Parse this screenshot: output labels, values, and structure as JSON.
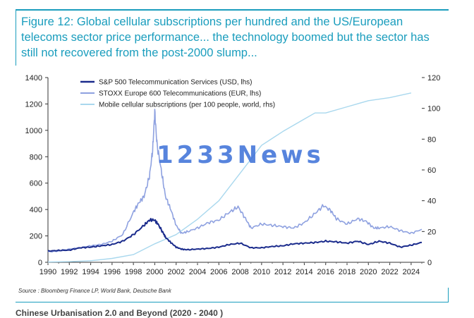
{
  "title": "Figure 12: Global cellular subscriptions per hundred and the US/European telecoms sector price performance... the technology boomed but the sector has still not recovered from the post-2000 slump...",
  "source": "Source : Bloomberg Finance LP, World Bank, Deutsche Bank",
  "footer": "Chinese Urbanisation 2.0 and Beyond (2020 - 2040 )",
  "watermark": "1233News",
  "colors": {
    "frame": "#1a9dbd",
    "sp500": "#1a2b8c",
    "stoxx": "#8ea1e0",
    "mobile": "#a9d8ee"
  },
  "chart_data": {
    "type": "line",
    "title": "",
    "xlabel": "",
    "ylabel_left": "",
    "ylabel_right": "",
    "xlim": [
      1990,
      2025
    ],
    "ylim_left": [
      0,
      1400
    ],
    "ylim_right": [
      0,
      120
    ],
    "x_ticks": [
      "1990",
      "1992",
      "1994",
      "1996",
      "1998",
      "2000",
      "2002",
      "2004",
      "2006",
      "2008",
      "2010",
      "2012",
      "2014",
      "2016",
      "2018",
      "2020",
      "2022",
      "2024"
    ],
    "y_ticks_left": [
      "0",
      "200",
      "400",
      "600",
      "800",
      "1000",
      "1200",
      "1400"
    ],
    "y_ticks_right": [
      "0",
      "20",
      "40",
      "60",
      "80",
      "100",
      "120"
    ],
    "legend_position": "top-left",
    "series": [
      {
        "name": "S&P 500 Telecommunication Services (USD, lhs)",
        "axis": "left",
        "x": [
          1990,
          1991,
          1992,
          1993,
          1994,
          1995,
          1996,
          1997,
          1998,
          1999,
          1999.5,
          2000,
          2000.3,
          2000.8,
          2001,
          2001.5,
          2002,
          2002.5,
          2003,
          2004,
          2005,
          2006,
          2007,
          2008,
          2009,
          2010,
          2011,
          2012,
          2013,
          2014,
          2015,
          2016,
          2017,
          2018,
          2019,
          2020,
          2021,
          2022,
          2023,
          2024,
          2025
        ],
        "y": [
          85,
          90,
          92,
          110,
          115,
          125,
          135,
          160,
          210,
          280,
          320,
          320,
          290,
          220,
          190,
          150,
          115,
          100,
          95,
          100,
          105,
          115,
          135,
          145,
          110,
          110,
          120,
          125,
          140,
          145,
          150,
          160,
          155,
          145,
          160,
          135,
          160,
          145,
          115,
          130,
          150
        ]
      },
      {
        "name": "STOXX Europe 600 Telecommunications (EUR, lhs)",
        "axis": "left",
        "x": [
          1990,
          1991,
          1992,
          1993,
          1994,
          1995,
          1996,
          1997,
          1998,
          1998.5,
          1999,
          1999.5,
          1999.8,
          2000,
          2000.2,
          2000.6,
          2001,
          2001.5,
          2002,
          2002.5,
          2003,
          2004,
          2005,
          2006,
          2007,
          2007.8,
          2008.5,
          2009,
          2010,
          2011,
          2012,
          2013,
          2014,
          2015,
          2015.8,
          2016.5,
          2017,
          2018,
          2019,
          2019.8,
          2020.5,
          2021,
          2022,
          2023,
          2024,
          2025
        ],
        "y": [
          80,
          85,
          100,
          110,
          125,
          135,
          160,
          210,
          380,
          450,
          500,
          650,
          850,
          1140,
          900,
          700,
          500,
          400,
          280,
          220,
          230,
          260,
          300,
          320,
          380,
          420,
          330,
          260,
          290,
          280,
          270,
          260,
          300,
          370,
          430,
          390,
          330,
          290,
          330,
          310,
          260,
          260,
          270,
          240,
          220,
          250
        ]
      },
      {
        "name": "Mobile cellular subscriptions (per 100 people, world, rhs)",
        "axis": "right",
        "x": [
          1990,
          1992,
          1994,
          1996,
          1998,
          2000,
          2002,
          2004,
          2006,
          2008,
          2010,
          2012,
          2014,
          2015,
          2016,
          2018,
          2020,
          2022,
          2024
        ],
        "y": [
          0.2,
          0.4,
          1,
          2.5,
          5,
          12,
          18,
          28,
          40,
          58,
          76,
          85,
          93,
          97,
          97,
          101,
          105,
          107,
          110
        ]
      }
    ]
  }
}
